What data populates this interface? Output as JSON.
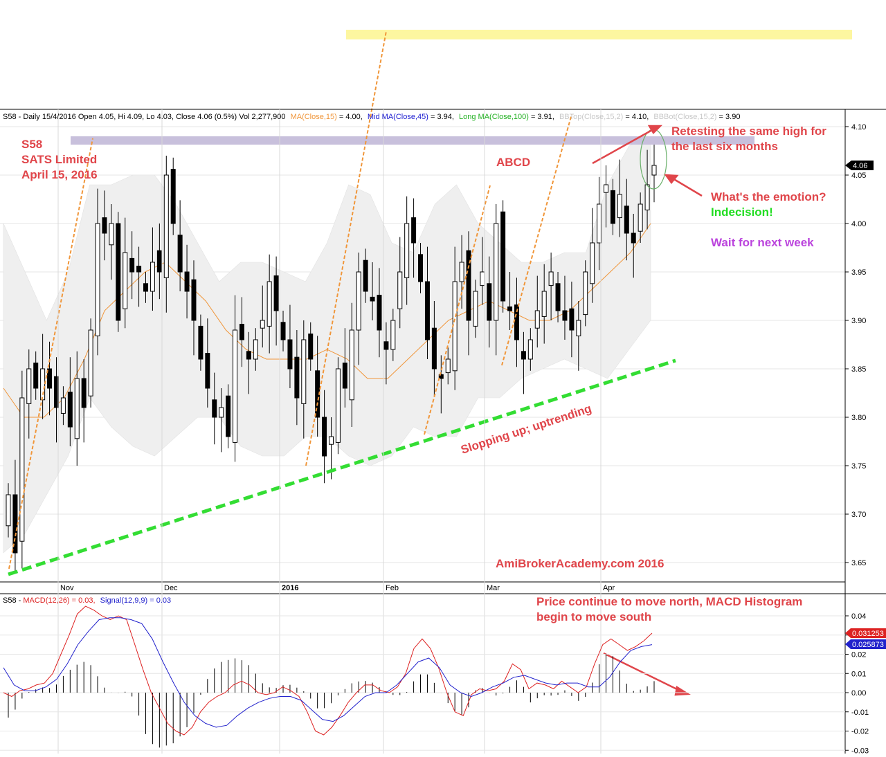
{
  "price_header": {
    "prefix": "S58 - Daily 15/4/2016 Open 4.05, Hi 4.09, Lo 4.03, Close 4.06 (0.5%) Vol 2,277,900",
    "ma_label": "MA(Close,15)",
    "ma_value": " = 4.00,",
    "mid_label": "Mid MA(Close,45)",
    "mid_value": " = 3.94,",
    "long_label": "Long MA(Close,100)",
    "long_value": " = 3.91,",
    "bbtop_label": "BBTop(Close,15,2)",
    "bbtop_value": " = 4.10,",
    "bbbot_label": "BBBot(Close,15,2)",
    "bbbot_value": " = 3.90"
  },
  "macd_header": {
    "prefix": "S58 - ",
    "macd_label": "MACD(12,26) = 0.03,",
    "signal_label": "Signal(12,9,9) = 0.03"
  },
  "price_axis": {
    "ticks": [
      "4.10",
      "4.05",
      "4.00",
      "3.95",
      "3.90",
      "3.85",
      "3.80",
      "3.75",
      "3.70",
      "3.65"
    ],
    "current_tag": "4.06"
  },
  "macd_axis": {
    "ticks": [
      "0.04",
      "0.03",
      "0.02",
      "0.01",
      "0.00",
      "-0.01",
      "-0.02",
      "-0.03"
    ],
    "macd_tag": "0.031253",
    "signal_tag": "0.025873"
  },
  "months": [
    "Nov",
    "Dec",
    "2016",
    "Feb",
    "Mar",
    "Apr"
  ],
  "annotations": {
    "title_code": "S58",
    "title_name": "SATS Limited",
    "title_date": "April 15, 2016",
    "abcd": "ABCD",
    "retest_1": "Retesting the same high for",
    "retest_2": "the last six months",
    "emotion": "What's the emotion?",
    "indecision": "Indecision!",
    "wait": "Wait for next week",
    "sloping": "Slopping up; uptrending",
    "watermark": "AmiBrokerAcademy.com  2016",
    "macd_note_1": "Price continue to move north, MACD Histogram",
    "macd_note_2": "begin to move south"
  },
  "colors": {
    "ma15": "#f0963a",
    "mid_ma": "#1a1ad0",
    "long_ma": "#22b022",
    "bb_band": "#efefef",
    "annotation_red": "#e0454a",
    "annotation_green": "#22dd22",
    "annotation_purple": "#bb44dd",
    "trend_line": "#33dd33",
    "abcd_line": "#f0963a",
    "resistance_band": "#c8c0dc",
    "highlight_band": "#fdf6a0",
    "macd_line": "#dd2222",
    "signal_line": "#2222cc"
  },
  "chart_data": [
    {
      "type": "candlestick",
      "title": "S58 - Daily 15/4/2016",
      "ylim": [
        3.63,
        4.11
      ],
      "x_labels": [
        "Nov",
        "Dec",
        "2016",
        "Feb",
        "Mar",
        "Apr"
      ],
      "series": [
        {
          "name": "Close",
          "values": [
            3.72,
            3.66,
            3.82,
            3.85,
            3.83,
            3.85,
            3.83,
            3.81,
            3.82,
            3.79,
            3.84,
            3.81,
            3.89,
            4.0,
            3.99,
            4.0,
            3.9,
            3.97,
            3.95,
            3.95,
            3.93,
            3.96,
            3.95,
            4.05,
            4.0,
            3.95,
            3.93,
            3.9,
            3.86,
            3.83,
            3.8,
            3.81,
            3.78,
            3.89,
            3.88,
            3.86,
            3.88,
            3.9,
            3.94,
            3.91,
            3.88,
            3.85,
            3.82,
            3.88,
            3.86,
            3.8,
            3.76,
            3.78,
            3.85,
            3.83,
            3.89,
            3.95,
            3.93,
            3.92,
            3.89,
            3.87,
            3.9,
            3.95,
            4.0,
            3.98,
            3.94,
            3.88,
            3.85,
            3.84,
            3.86,
            3.94,
            3.96,
            3.9,
            3.93,
            3.95,
            3.9,
            4.0,
            3.92,
            3.91,
            3.88,
            3.86,
            3.88,
            3.91,
            3.93,
            3.95,
            3.91,
            3.9,
            3.89,
            3.9,
            3.95,
            3.98,
            4.02,
            4.04,
            4.0,
            4.03,
            3.99,
            3.98,
            4.02,
            4.04,
            4.06
          ]
        },
        {
          "name": "MA(Close,15)",
          "values": [
            3.83,
            3.8,
            3.8,
            3.82,
            3.86,
            3.91,
            3.93,
            3.95,
            3.96,
            3.94,
            3.92,
            3.89,
            3.87,
            3.86,
            3.86,
            3.86,
            3.87,
            3.86,
            3.84,
            3.84,
            3.86,
            3.88,
            3.9,
            3.91,
            3.92,
            3.91,
            3.9,
            3.9,
            3.91,
            3.93,
            3.95,
            3.97,
            4.0
          ]
        },
        {
          "name": "BBTop(Close,15,2)",
          "values": [
            4.0,
            3.95,
            3.9,
            3.95,
            4.04,
            4.04,
            4.05,
            4.05,
            4.02,
            3.98,
            3.94,
            3.96,
            3.96,
            3.95,
            3.94,
            3.98,
            4.04,
            4.03,
            3.98,
            3.97,
            4.02,
            4.04,
            4.0,
            3.98,
            3.96,
            3.96,
            3.97,
            3.97,
            4.04,
            4.08,
            4.09
          ]
        },
        {
          "name": "BBBot(Close,15,2)",
          "values": [
            3.66,
            3.68,
            3.72,
            3.76,
            3.82,
            3.79,
            3.77,
            3.76,
            3.78,
            3.8,
            3.8,
            3.77,
            3.76,
            3.76,
            3.78,
            3.78,
            3.76,
            3.75,
            3.76,
            3.79,
            3.78,
            3.78,
            3.82,
            3.82,
            3.84,
            3.85,
            3.86,
            3.85,
            3.84,
            3.87,
            3.9
          ]
        }
      ]
    },
    {
      "type": "line",
      "title": "MACD(12,26) = 0.03, Signal(12,9,9) = 0.03",
      "ylim": [
        -0.03,
        0.045
      ],
      "series": [
        {
          "name": "MACD(12,26)",
          "values": [
            0.0,
            -0.002,
            0.001,
            0.002,
            0.004,
            0.005,
            0.01,
            0.02,
            0.03,
            0.041,
            0.045,
            0.043,
            0.04,
            0.038,
            0.04,
            0.038,
            0.025,
            0.012,
            0.0,
            -0.008,
            -0.016,
            -0.02,
            -0.022,
            -0.018,
            -0.01,
            -0.005,
            -0.002,
            0.0,
            0.004,
            0.006,
            0.004,
            0.0,
            -0.001,
            0.0,
            0.003,
            0.001,
            -0.002,
            -0.01,
            -0.02,
            -0.022,
            -0.018,
            -0.012,
            -0.005,
            0.0,
            0.004,
            0.004,
            0.001,
            0.0,
            0.003,
            0.01,
            0.023,
            0.028,
            0.023,
            0.013,
            0.0,
            -0.01,
            -0.012,
            -0.001,
            0.002,
            0.001,
            0.002,
            0.006,
            0.015,
            0.012,
            0.002,
            0.005,
            0.004,
            0.002,
            0.006,
            0.003,
            0.0,
            0.003,
            0.015,
            0.025,
            0.028,
            0.025,
            0.022,
            0.024,
            0.027,
            0.031
          ]
        },
        {
          "name": "Signal(12,9,9)",
          "values": [
            0.013,
            0.004,
            0.001,
            0.001,
            0.003,
            0.007,
            0.015,
            0.025,
            0.032,
            0.038,
            0.039,
            0.039,
            0.038,
            0.036,
            0.028,
            0.016,
            0.005,
            -0.005,
            -0.012,
            -0.016,
            -0.018,
            -0.017,
            -0.012,
            -0.008,
            -0.005,
            -0.003,
            -0.002,
            -0.002,
            -0.004,
            -0.009,
            -0.014,
            -0.015,
            -0.012,
            -0.007,
            -0.002,
            0.0,
            0.0,
            0.004,
            0.01,
            0.016,
            0.018,
            0.013,
            0.004,
            0.0,
            -0.002,
            0.0,
            0.003,
            0.005,
            0.008,
            0.009,
            0.007,
            0.005,
            0.004,
            0.005,
            0.005,
            0.003,
            0.003,
            0.008,
            0.016,
            0.022,
            0.024,
            0.025
          ]
        }
      ]
    }
  ]
}
